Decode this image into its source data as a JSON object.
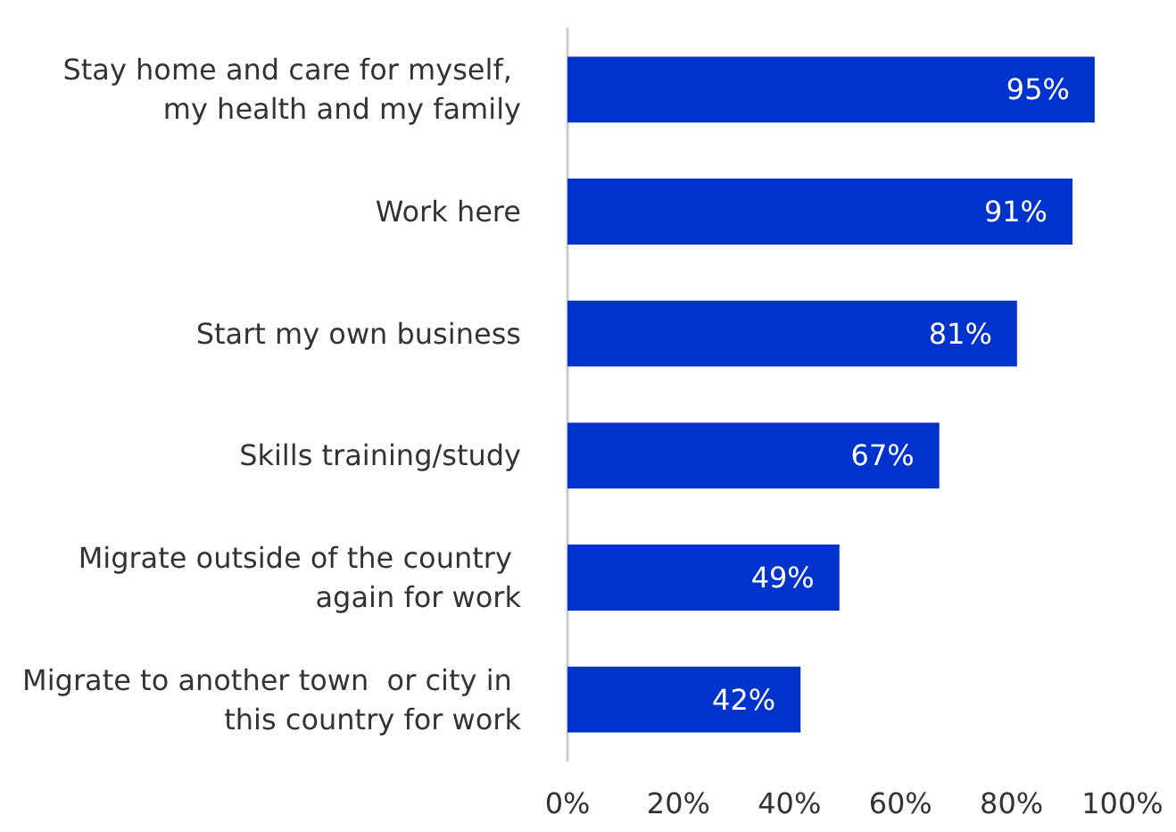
{
  "chart_data": {
    "type": "bar",
    "orientation": "horizontal",
    "categories": [
      "Stay home and care for myself, my health and my family",
      "Work here",
      "Start my own business",
      "Skills training/study",
      "Migrate outside of the country again for work",
      "Migrate to another town  or city in this country for work"
    ],
    "values": [
      95,
      91,
      81,
      67,
      49,
      42
    ],
    "color": "#0033cc",
    "value_labels": [
      "95%",
      "91%",
      "81%",
      "67%",
      "49%",
      "42%"
    ],
    "xlim": [
      0,
      100
    ],
    "xticks": [
      {
        "value": 0,
        "label": "0%"
      },
      {
        "value": 20,
        "label": "20%"
      },
      {
        "value": 40,
        "label": "40%"
      },
      {
        "value": 60,
        "label": "60%"
      },
      {
        "value": 80,
        "label": "80%"
      },
      {
        "value": 100,
        "label": "100%"
      }
    ],
    "grid": false
  }
}
